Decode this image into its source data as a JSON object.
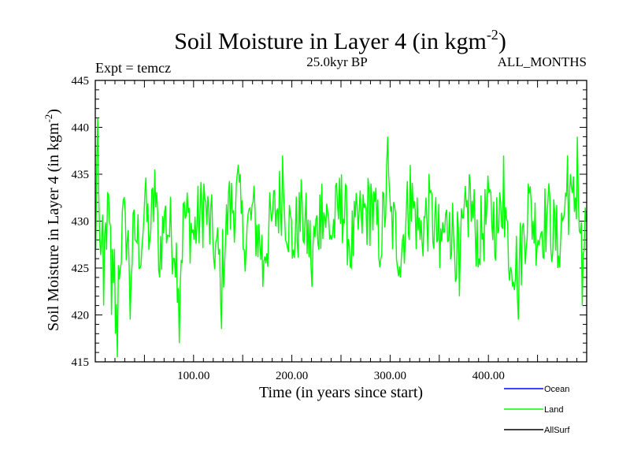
{
  "chart_data": {
    "type": "line",
    "title": "Soil Moisture in Layer 4 (in kgm",
    "title_sup": "-2",
    "title_close": ")",
    "left_label": "Expt = temcz",
    "center_label": "25.0kyr BP",
    "right_label": "ALL_MONTHS",
    "xlabel": "Time (in years since start)",
    "ylabel": "Soil Moisture in Layer 4 (in kgm",
    "ylabel_sup": "-2",
    "ylabel_close": ")",
    "xlim": [
      0,
      500
    ],
    "ylim": [
      415,
      445
    ],
    "x_ticks": [
      100,
      200,
      300,
      400
    ],
    "x_tick_labels": [
      "100.00",
      "200.00",
      "300.00",
      "400.00"
    ],
    "y_ticks": [
      415,
      420,
      425,
      430,
      435,
      440,
      445
    ],
    "y_tick_labels": [
      "415",
      "420",
      "425",
      "430",
      "435",
      "440",
      "445"
    ],
    "legend": [
      {
        "name": "Ocean",
        "color": "#0000ff"
      },
      {
        "name": "Land",
        "color": "#00ff00"
      },
      {
        "name": "AllSurf",
        "color": "#000000"
      }
    ],
    "series": [
      {
        "name": "Land",
        "color": "#00ff00",
        "n_points": 500,
        "approx_mean": 429.5,
        "anchor_points": [
          [
            0,
            427
          ],
          [
            1,
            436
          ],
          [
            2,
            441
          ],
          [
            4,
            428
          ],
          [
            8,
            421
          ],
          [
            12,
            433
          ],
          [
            16,
            420
          ],
          [
            20,
            418
          ],
          [
            22,
            415.5
          ],
          [
            25,
            425
          ],
          [
            30,
            431
          ],
          [
            35,
            419.5
          ],
          [
            40,
            428
          ],
          [
            45,
            425
          ],
          [
            50,
            433
          ],
          [
            55,
            428
          ],
          [
            60,
            435.5
          ],
          [
            65,
            424
          ],
          [
            70,
            431
          ],
          [
            80,
            426
          ],
          [
            85,
            417
          ],
          [
            90,
            432
          ],
          [
            100,
            428
          ],
          [
            110,
            434
          ],
          [
            120,
            426
          ],
          [
            128,
            418.5
          ],
          [
            135,
            433
          ],
          [
            145,
            436
          ],
          [
            150,
            427
          ],
          [
            160,
            432
          ],
          [
            170,
            423
          ],
          [
            180,
            431
          ],
          [
            190,
            437
          ],
          [
            200,
            426
          ],
          [
            210,
            432
          ],
          [
            220,
            423
          ],
          [
            230,
            434
          ],
          [
            240,
            428
          ],
          [
            250,
            435
          ],
          [
            260,
            425
          ],
          [
            270,
            431
          ],
          [
            280,
            434
          ],
          [
            290,
            426
          ],
          [
            297,
            439
          ],
          [
            300,
            431
          ],
          [
            310,
            424
          ],
          [
            320,
            436
          ],
          [
            330,
            428
          ],
          [
            340,
            433
          ],
          [
            350,
            425
          ],
          [
            360,
            431
          ],
          [
            370,
            422
          ],
          [
            380,
            435
          ],
          [
            390,
            426
          ],
          [
            400,
            433
          ],
          [
            410,
            429
          ],
          [
            415,
            437
          ],
          [
            420,
            425
          ],
          [
            430,
            419.5
          ],
          [
            440,
            434
          ],
          [
            450,
            428
          ],
          [
            460,
            432
          ],
          [
            470,
            425
          ],
          [
            480,
            437
          ],
          [
            485,
            433
          ],
          [
            490,
            439
          ],
          [
            495,
            421
          ],
          [
            499,
            430
          ]
        ]
      }
    ]
  }
}
